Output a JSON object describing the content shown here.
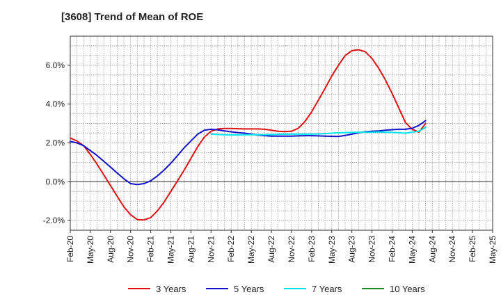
{
  "title": "[3608]  Trend of Mean of ROE",
  "chart_data": {
    "type": "line",
    "title": "[3608]  Trend of Mean of ROE",
    "xlabel": "",
    "ylabel": "",
    "x_ticks": [
      "Feb-20",
      "May-20",
      "Aug-20",
      "Nov-20",
      "Feb-21",
      "May-21",
      "Aug-21",
      "Nov-21",
      "Feb-22",
      "May-22",
      "Aug-22",
      "Nov-22",
      "Feb-23",
      "May-23",
      "Aug-23",
      "Nov-23",
      "Feb-24",
      "May-24",
      "Aug-24",
      "Nov-24",
      "Feb-25",
      "May-25"
    ],
    "y_ticks": [
      -2.0,
      0.0,
      2.0,
      4.0,
      6.0
    ],
    "y_tick_labels": [
      "-2.0%",
      "0.0%",
      "2.0%",
      "4.0%",
      "6.0%"
    ],
    "ylim": [
      -2.5,
      7.5
    ],
    "grid": true,
    "legend": "bottom",
    "series": [
      {
        "name": "3 Years",
        "color": "#dd1111",
        "x_start_index": 0,
        "values": [
          2.25,
          2.1,
          1.85,
          1.4,
          0.9,
          0.35,
          -0.2,
          -0.75,
          -1.3,
          -1.7,
          -1.95,
          -1.97,
          -1.85,
          -1.5,
          -1.05,
          -0.5,
          0.05,
          0.6,
          1.2,
          1.8,
          2.3,
          2.6,
          2.72,
          2.74,
          2.74,
          2.73,
          2.72,
          2.72,
          2.72,
          2.7,
          2.65,
          2.6,
          2.58,
          2.6,
          2.75,
          3.1,
          3.6,
          4.2,
          4.8,
          5.45,
          6.0,
          6.5,
          6.75,
          6.8,
          6.7,
          6.35,
          5.85,
          5.25,
          4.55,
          3.8,
          3.05,
          2.7,
          2.55,
          3.0
        ]
      },
      {
        "name": "5 Years",
        "color": "#1111cc",
        "x_start_index": 0,
        "values": [
          2.07,
          2.0,
          1.85,
          1.6,
          1.35,
          1.05,
          0.75,
          0.45,
          0.15,
          -0.1,
          -0.15,
          -0.1,
          0.05,
          0.3,
          0.6,
          0.95,
          1.35,
          1.75,
          2.1,
          2.45,
          2.65,
          2.7,
          2.67,
          2.62,
          2.57,
          2.53,
          2.5,
          2.45,
          2.4,
          2.37,
          2.35,
          2.35,
          2.35,
          2.35,
          2.36,
          2.37,
          2.37,
          2.36,
          2.35,
          2.34,
          2.33,
          2.38,
          2.45,
          2.52,
          2.57,
          2.6,
          2.62,
          2.65,
          2.68,
          2.7,
          2.7,
          2.75,
          2.9,
          3.15
        ]
      },
      {
        "name": "7 Years",
        "color": "#00e5ee",
        "x_start_index": 21,
        "values": [
          2.45,
          2.43,
          2.42,
          2.41,
          2.41,
          2.42,
          2.42,
          2.42,
          2.42,
          2.43,
          2.44,
          2.45,
          2.45,
          2.45,
          2.45,
          2.45,
          2.46,
          2.48,
          2.5,
          2.52,
          2.53,
          2.54,
          2.55,
          2.55,
          2.55,
          2.56,
          2.55,
          2.54,
          2.52,
          2.5,
          2.55,
          2.6,
          2.8
        ]
      },
      {
        "name": "10 Years",
        "color": "#228822",
        "x_start_index": 0,
        "values": []
      }
    ]
  }
}
